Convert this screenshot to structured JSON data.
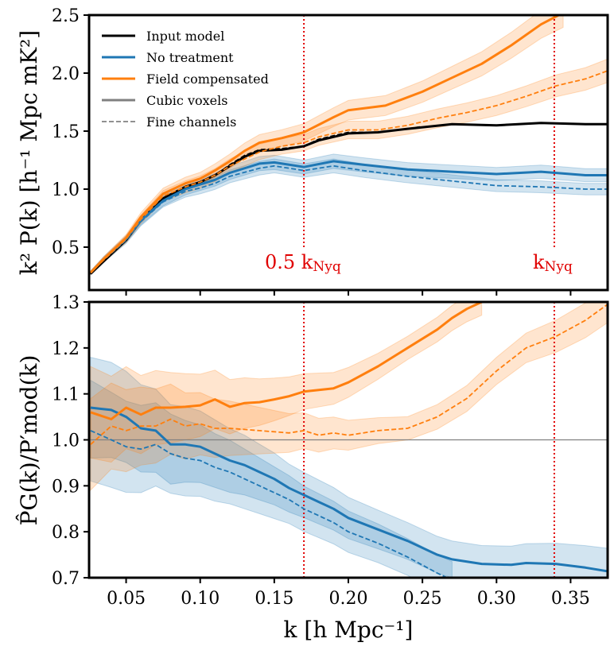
{
  "chart_data": [
    {
      "type": "line",
      "panel": "top",
      "ylabel": "k² P(k) [h⁻¹ Mpc mK²]",
      "xlim": [
        0.025,
        0.375
      ],
      "ylim": [
        0.13,
        2.5
      ],
      "yticks": [
        "0.5",
        "1.0",
        "1.5",
        "2.0",
        "2.5"
      ],
      "ytick_values": [
        0.5,
        1.0,
        1.5,
        2.0,
        2.5
      ],
      "xticks": [
        0.05,
        0.1,
        0.15,
        0.2,
        0.25,
        0.3,
        0.35
      ],
      "vlines": [
        {
          "x": 0.17,
          "label": "0.5 k",
          "sub": "Nyq"
        },
        {
          "x": 0.339,
          "label": "k",
          "sub": "Nyq"
        }
      ],
      "legend": {
        "placement": "upper-left",
        "entries": [
          {
            "label": "Input model",
            "color": "#000000",
            "style": "solid"
          },
          {
            "label": "No treatment",
            "color": "#1f77b4",
            "style": "solid"
          },
          {
            "label": "Field compensated",
            "color": "#ff7f0e",
            "style": "solid"
          },
          {
            "label": "Cubic voxels",
            "color": "#808080",
            "style": "solid"
          },
          {
            "label": "Fine channels",
            "color": "#808080",
            "style": "dashed"
          }
        ]
      },
      "series": [
        {
          "name": "Input model",
          "color": "#000000",
          "style": "solid",
          "x": [
            0.026,
            0.035,
            0.05,
            0.06,
            0.075,
            0.09,
            0.1,
            0.11,
            0.12,
            0.13,
            0.14,
            0.155,
            0.17,
            0.18,
            0.2,
            0.22,
            0.24,
            0.27,
            0.3,
            0.33,
            0.36,
            0.375
          ],
          "y": [
            0.27,
            0.38,
            0.56,
            0.73,
            0.92,
            1.02,
            1.06,
            1.12,
            1.2,
            1.28,
            1.33,
            1.34,
            1.37,
            1.42,
            1.48,
            1.49,
            1.52,
            1.56,
            1.55,
            1.57,
            1.56,
            1.56
          ]
        },
        {
          "name": "Input model fine",
          "color": "#000000",
          "style": "dashed",
          "x": [
            0.026,
            0.035,
            0.05,
            0.06,
            0.075,
            0.09,
            0.1,
            0.11,
            0.12,
            0.13,
            0.14,
            0.155,
            0.17,
            0.18,
            0.2,
            0.22,
            0.24,
            0.25
          ],
          "y": [
            0.27,
            0.38,
            0.56,
            0.73,
            0.92,
            1.02,
            1.06,
            1.12,
            1.21,
            1.29,
            1.34,
            1.35,
            1.37,
            1.43,
            1.49,
            1.49,
            1.52,
            1.54
          ]
        },
        {
          "name": "No treatment",
          "color": "#1f77b4",
          "style": "solid",
          "band": 0.05,
          "x": [
            0.026,
            0.035,
            0.05,
            0.06,
            0.075,
            0.09,
            0.1,
            0.11,
            0.12,
            0.14,
            0.15,
            0.17,
            0.19,
            0.21,
            0.24,
            0.27,
            0.3,
            0.33,
            0.36,
            0.375
          ],
          "y": [
            0.28,
            0.4,
            0.57,
            0.73,
            0.9,
            1.0,
            1.04,
            1.08,
            1.14,
            1.22,
            1.23,
            1.19,
            1.24,
            1.21,
            1.17,
            1.15,
            1.13,
            1.15,
            1.12,
            1.12
          ]
        },
        {
          "name": "No treatment fine",
          "color": "#1f77b4",
          "style": "dashed",
          "band": 0.05,
          "x": [
            0.026,
            0.035,
            0.05,
            0.06,
            0.075,
            0.09,
            0.1,
            0.11,
            0.12,
            0.14,
            0.15,
            0.17,
            0.19,
            0.21,
            0.24,
            0.27,
            0.3,
            0.33,
            0.36,
            0.375
          ],
          "y": [
            0.28,
            0.39,
            0.56,
            0.72,
            0.89,
            0.98,
            1.01,
            1.05,
            1.11,
            1.18,
            1.2,
            1.16,
            1.2,
            1.16,
            1.11,
            1.07,
            1.03,
            1.02,
            1.0,
            1.0
          ]
        },
        {
          "name": "Field compensated",
          "color": "#ff7f0e",
          "style": "solid",
          "band": 0.05,
          "x": [
            0.026,
            0.035,
            0.05,
            0.06,
            0.075,
            0.09,
            0.1,
            0.11,
            0.12,
            0.13,
            0.14,
            0.155,
            0.17,
            0.19,
            0.2,
            0.225,
            0.25,
            0.27,
            0.29,
            0.31,
            0.33,
            0.345
          ],
          "y": [
            0.28,
            0.4,
            0.58,
            0.76,
            0.96,
            1.05,
            1.09,
            1.16,
            1.24,
            1.33,
            1.4,
            1.44,
            1.49,
            1.62,
            1.68,
            1.72,
            1.84,
            1.96,
            2.08,
            2.24,
            2.42,
            2.52
          ]
        },
        {
          "name": "Field compensated fine",
          "color": "#ff7f0e",
          "style": "dashed",
          "band": 0.05,
          "x": [
            0.026,
            0.035,
            0.05,
            0.06,
            0.075,
            0.09,
            0.1,
            0.11,
            0.12,
            0.14,
            0.155,
            0.17,
            0.18,
            0.2,
            0.22,
            0.24,
            0.26,
            0.28,
            0.3,
            0.32,
            0.34,
            0.36,
            0.375
          ],
          "y": [
            0.28,
            0.39,
            0.57,
            0.74,
            0.94,
            1.02,
            1.06,
            1.12,
            1.2,
            1.32,
            1.37,
            1.4,
            1.45,
            1.51,
            1.51,
            1.55,
            1.61,
            1.66,
            1.72,
            1.8,
            1.89,
            1.95,
            2.02
          ]
        }
      ]
    },
    {
      "type": "line",
      "panel": "bottom",
      "ylabel": "P̂G(k)/P′mod(k)",
      "xlabel": "k [h Mpc⁻¹]",
      "xlim": [
        0.025,
        0.375
      ],
      "ylim": [
        0.7,
        1.3
      ],
      "yticks": [
        "0.7",
        "0.8",
        "0.9",
        "1.0",
        "1.1",
        "1.2",
        "1.3"
      ],
      "ytick_values": [
        0.7,
        0.8,
        0.9,
        1.0,
        1.1,
        1.2,
        1.3
      ],
      "xticks": [
        "0.05",
        "0.10",
        "0.15",
        "0.20",
        "0.25",
        "0.30",
        "0.35"
      ],
      "xtick_values": [
        0.05,
        0.1,
        0.15,
        0.2,
        0.25,
        0.3,
        0.35
      ],
      "hline": 1.0,
      "vlines": [
        {
          "x": 0.17
        },
        {
          "x": 0.339
        }
      ],
      "series": [
        {
          "name": "No treatment",
          "color": "#1f77b4",
          "style": "solid",
          "band": [
            0.11,
            0.08,
            0.05,
            0.04,
            0.04,
            0.05
          ],
          "x": [
            0.026,
            0.04,
            0.05,
            0.06,
            0.07,
            0.08,
            0.09,
            0.1,
            0.11,
            0.12,
            0.13,
            0.14,
            0.15,
            0.16,
            0.17,
            0.18,
            0.19,
            0.2,
            0.22,
            0.24,
            0.26,
            0.27,
            0.29,
            0.31,
            0.32,
            0.34,
            0.36,
            0.375
          ],
          "y": [
            1.07,
            1.065,
            1.05,
            1.025,
            1.02,
            0.99,
            0.99,
            0.985,
            0.97,
            0.955,
            0.945,
            0.93,
            0.915,
            0.895,
            0.88,
            0.865,
            0.85,
            0.83,
            0.805,
            0.78,
            0.75,
            0.74,
            0.73,
            0.728,
            0.732,
            0.73,
            0.722,
            0.714
          ]
        },
        {
          "name": "No treatment fine",
          "color": "#1f77b4",
          "style": "dashed",
          "band": [
            0.11,
            0.08,
            0.05,
            0.04,
            0.04,
            0.05
          ],
          "x": [
            0.026,
            0.04,
            0.05,
            0.06,
            0.07,
            0.08,
            0.09,
            0.1,
            0.11,
            0.12,
            0.13,
            0.14,
            0.15,
            0.16,
            0.17,
            0.18,
            0.19,
            0.2,
            0.22,
            0.24,
            0.26,
            0.27
          ],
          "y": [
            1.02,
            1.0,
            0.985,
            0.98,
            0.99,
            0.97,
            0.96,
            0.955,
            0.94,
            0.93,
            0.915,
            0.9,
            0.885,
            0.87,
            0.85,
            0.835,
            0.82,
            0.8,
            0.775,
            0.745,
            0.71,
            0.695
          ]
        },
        {
          "name": "Field compensated",
          "color": "#ff7f0e",
          "style": "solid",
          "band": [
            0.1,
            0.07,
            0.04,
            0.025,
            0.03,
            0.04
          ],
          "x": [
            0.026,
            0.04,
            0.05,
            0.06,
            0.07,
            0.08,
            0.09,
            0.1,
            0.11,
            0.12,
            0.13,
            0.14,
            0.15,
            0.16,
            0.17,
            0.19,
            0.2,
            0.22,
            0.24,
            0.26,
            0.27,
            0.28,
            0.29
          ],
          "y": [
            1.06,
            1.045,
            1.07,
            1.055,
            1.07,
            1.07,
            1.072,
            1.075,
            1.088,
            1.072,
            1.08,
            1.082,
            1.088,
            1.095,
            1.105,
            1.112,
            1.125,
            1.16,
            1.2,
            1.24,
            1.265,
            1.285,
            1.3
          ]
        },
        {
          "name": "Field compensated fine",
          "color": "#ff7f0e",
          "style": "dashed",
          "band": [
            0.1,
            0.07,
            0.04,
            0.025,
            0.03,
            0.04
          ],
          "x": [
            0.026,
            0.04,
            0.05,
            0.06,
            0.07,
            0.08,
            0.09,
            0.1,
            0.11,
            0.12,
            0.14,
            0.16,
            0.17,
            0.18,
            0.19,
            0.2,
            0.22,
            0.24,
            0.26,
            0.28,
            0.3,
            0.32,
            0.34,
            0.36,
            0.375
          ],
          "y": [
            0.99,
            1.03,
            1.02,
            1.03,
            1.03,
            1.045,
            1.03,
            1.035,
            1.025,
            1.025,
            1.02,
            1.015,
            1.02,
            1.01,
            1.015,
            1.01,
            1.02,
            1.025,
            1.05,
            1.09,
            1.15,
            1.2,
            1.225,
            1.26,
            1.295
          ]
        }
      ]
    }
  ]
}
